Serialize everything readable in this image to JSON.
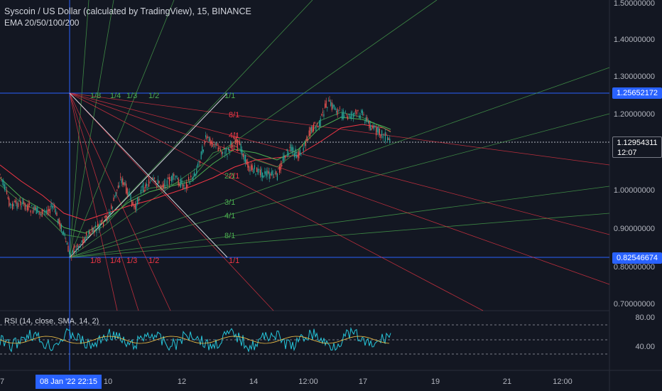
{
  "header": {
    "title": "Syscoin / US Dollar (calculated by TradingView), 15, BINANCE",
    "indicator": "EMA 20/50/100/200"
  },
  "rsi": {
    "label": "RSI (14, close, SMA, 14, 2)",
    "levels": [
      "80.00",
      "40.00"
    ]
  },
  "price_axis": {
    "labels": [
      "1.50000000",
      "1.40000000",
      "1.30000000",
      "1.20000000",
      "1.00000000",
      "0.90000000",
      "0.80000000",
      "0.70000000"
    ],
    "high_badge": "1.25652172",
    "current_badge": "1.12954311",
    "countdown": "12:07",
    "low_badge": "0.82546674"
  },
  "time_axis": {
    "labels": [
      "7",
      "10",
      "12",
      "14",
      "12:00",
      "17",
      "19",
      "21",
      "12:00"
    ],
    "highlight": "08 Jan '22   22:15"
  },
  "gann_fan": {
    "top_labels": [
      "1/8",
      "1/4",
      "1/3",
      "1/2",
      "1/1"
    ],
    "bottom_labels": [
      "1/8",
      "1/4",
      "1/3",
      "1/2",
      "1/1"
    ],
    "red_upper_labels": [
      "8/1",
      "4/1",
      "3/1",
      "2/1"
    ],
    "green_lower_labels": [
      "2/1",
      "3/1",
      "4/1",
      "8/1"
    ]
  },
  "colors": {
    "background": "#131722",
    "blue_line": "#2962ff",
    "green": "#4caf50",
    "red": "#f23645"
  }
}
